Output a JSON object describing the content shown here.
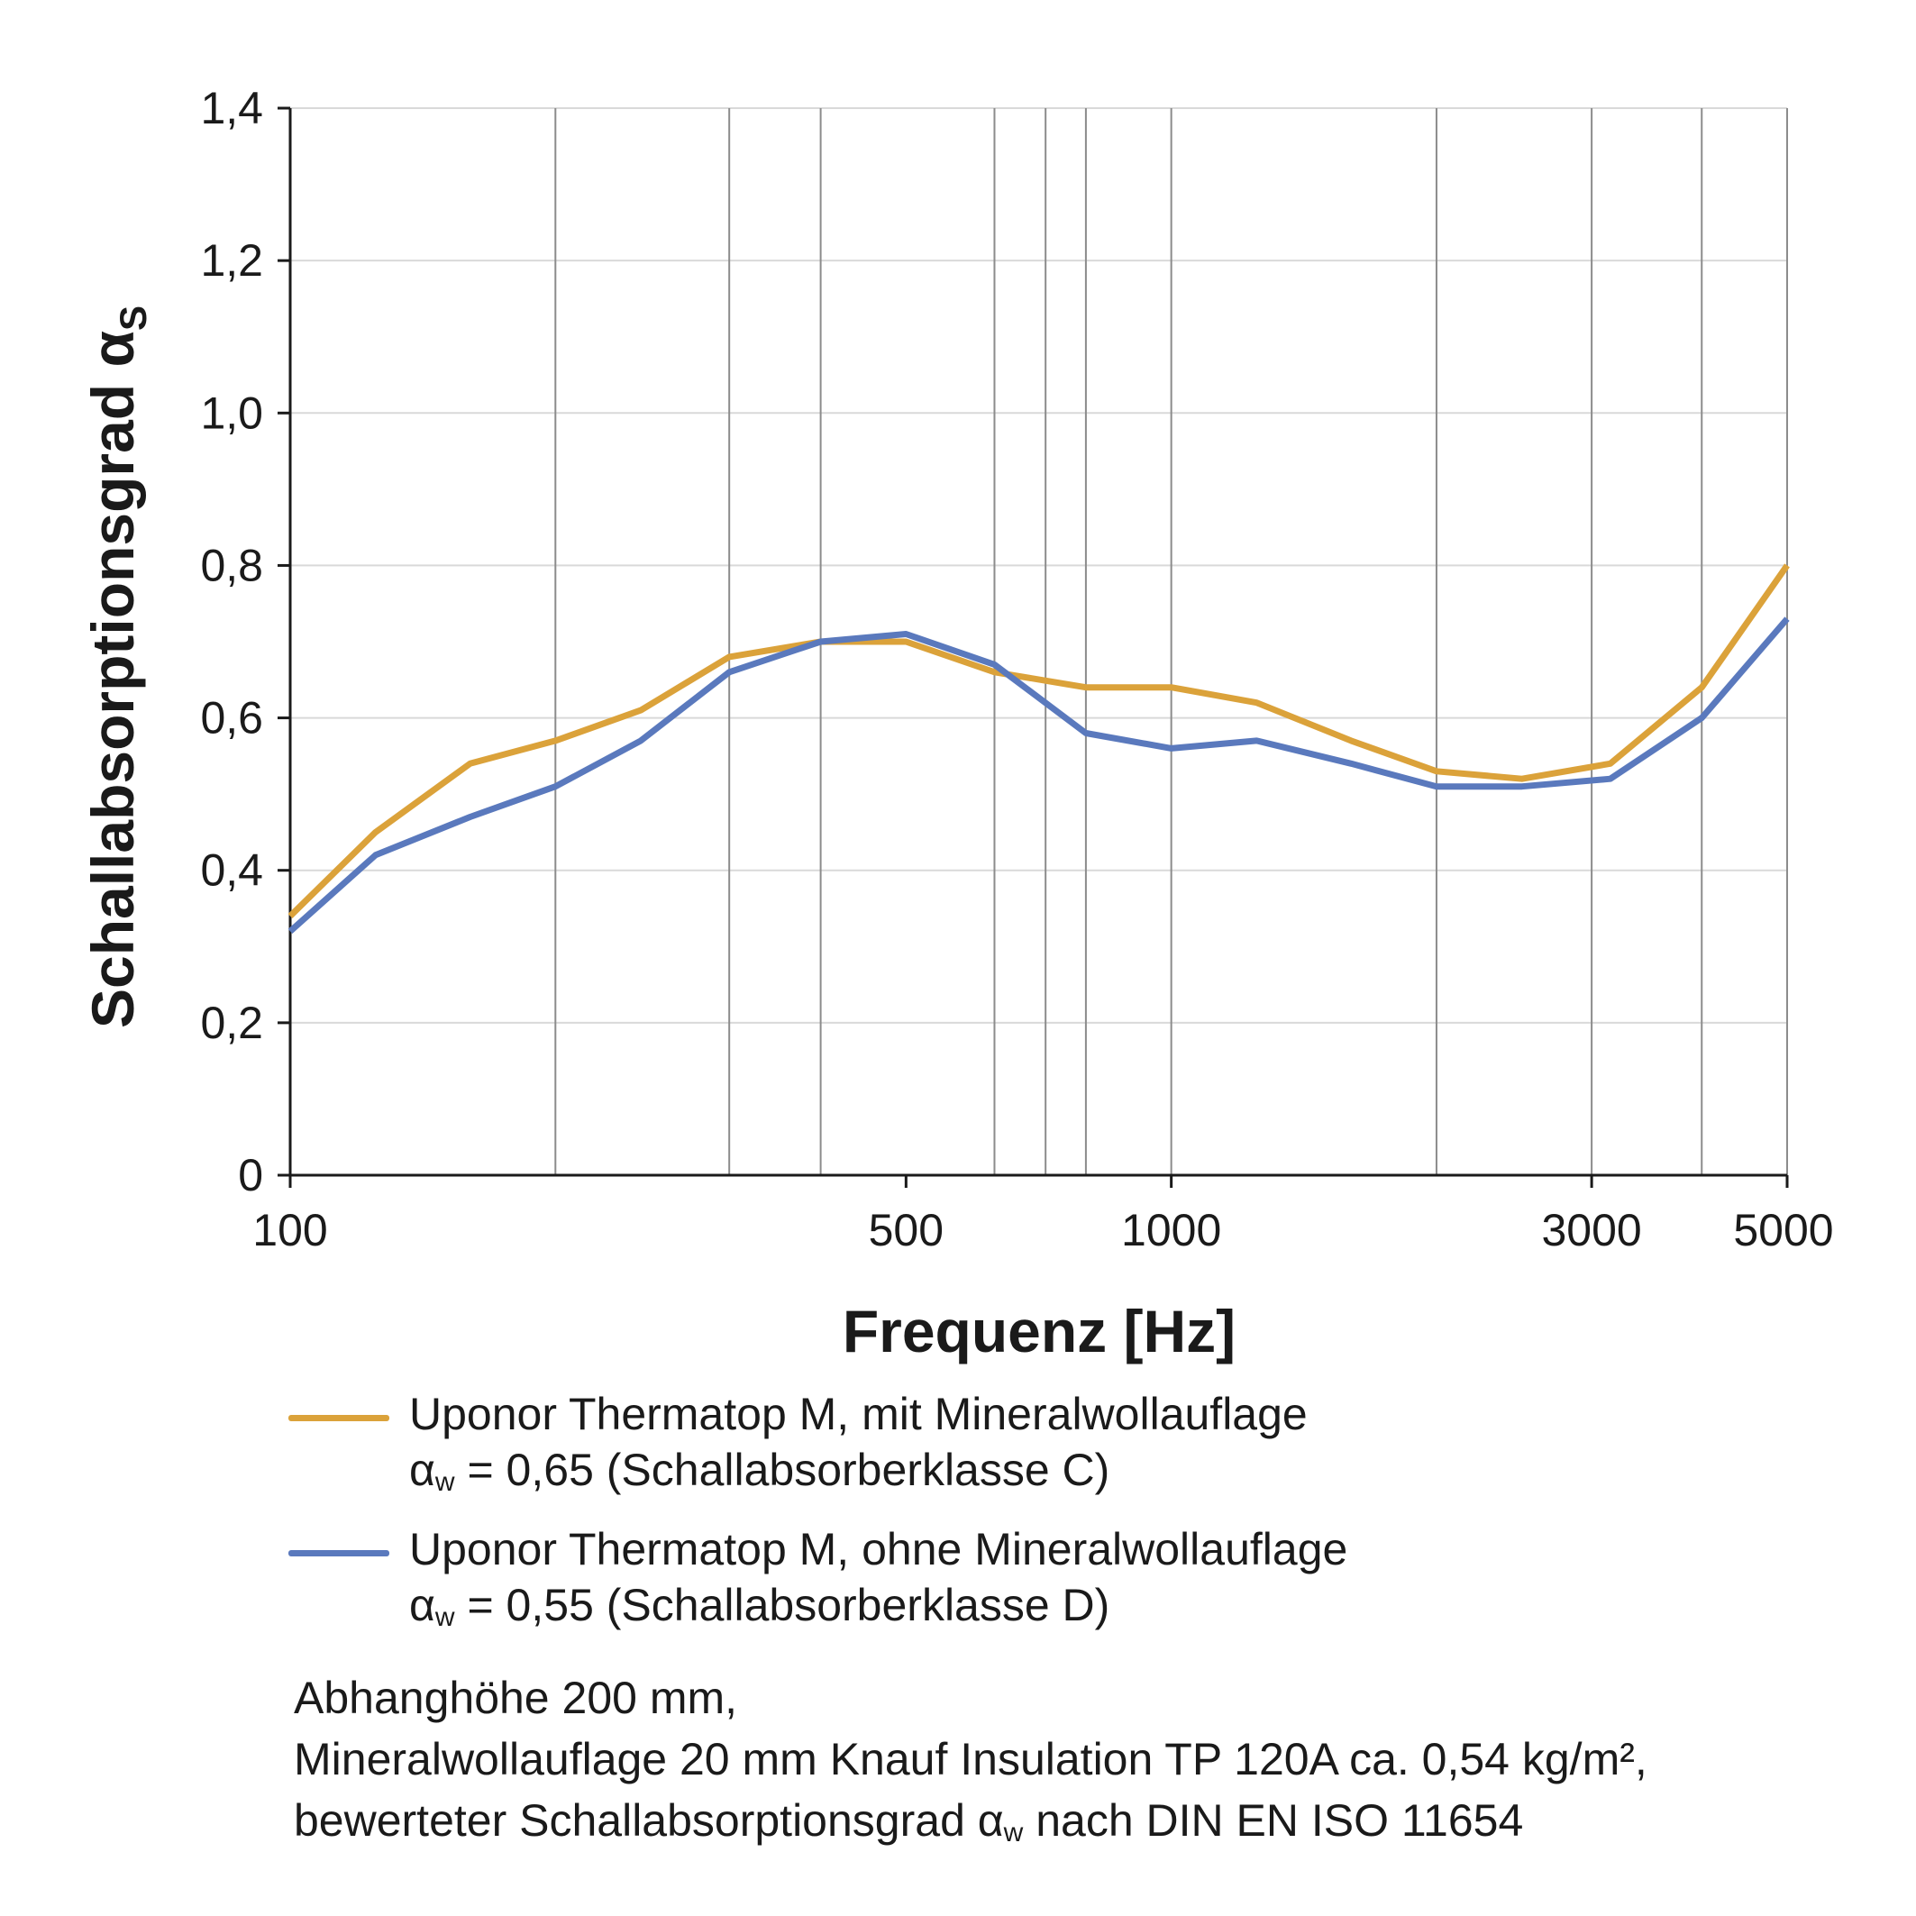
{
  "chart_data": {
    "type": "line",
    "xlabel": "Frequenz [Hz]",
    "ylabel_main": "Schallabsorptionsgrad α",
    "ylabel_sub": "S",
    "x_scale": "log",
    "xlim": [
      100,
      5000
    ],
    "ylim": [
      0,
      1.4
    ],
    "x_ticks": [
      {
        "value": 100,
        "label": "100"
      },
      {
        "value": 500,
        "label": "500"
      },
      {
        "value": 1000,
        "label": "1000"
      },
      {
        "value": 3000,
        "label": "3000"
      },
      {
        "value": 5000,
        "label": "5000"
      }
    ],
    "y_ticks": [
      {
        "value": 0,
        "label": "0"
      },
      {
        "value": 0.2,
        "label": "0,2"
      },
      {
        "value": 0.4,
        "label": "0,4"
      },
      {
        "value": 0.6,
        "label": "0,6"
      },
      {
        "value": 0.8,
        "label": "0,8"
      },
      {
        "value": 1.0,
        "label": "1,0"
      },
      {
        "value": 1.2,
        "label": "1,2"
      },
      {
        "value": 1.4,
        "label": "1,4"
      }
    ],
    "x_gridlines": [
      200,
      315,
      400,
      630,
      720,
      800,
      1000,
      2000,
      3000,
      4000
    ],
    "y_gridlines": [
      0.2,
      0.4,
      0.6,
      0.8,
      1.0,
      1.2,
      1.4
    ],
    "x": [
      100,
      125,
      160,
      200,
      250,
      315,
      400,
      500,
      630,
      800,
      1000,
      1250,
      1600,
      2000,
      2500,
      3150,
      4000,
      5000
    ],
    "series": [
      {
        "name": "Uponor Thermatop M, mit Mineralwollauflage",
        "color": "#dba23a",
        "values": [
          0.34,
          0.45,
          0.54,
          0.57,
          0.61,
          0.68,
          0.7,
          0.7,
          0.66,
          0.64,
          0.64,
          0.62,
          0.57,
          0.53,
          0.52,
          0.54,
          0.64,
          0.8
        ]
      },
      {
        "name": "Uponor Thermatop M, ohne Mineralwollauflage",
        "color": "#5a79bd",
        "values": [
          0.32,
          0.42,
          0.47,
          0.51,
          0.57,
          0.66,
          0.7,
          0.71,
          0.67,
          0.58,
          0.56,
          0.57,
          0.54,
          0.51,
          0.51,
          0.52,
          0.6,
          0.73
        ]
      }
    ],
    "legend": [
      {
        "line1": "Uponor Thermatop M, mit Mineralwollauflage",
        "alpha": "α",
        "sub": "w",
        "line2": " = 0,65 (Schallabsorberklasse C)"
      },
      {
        "line1": "Uponor Thermatop M, ohne Mineralwollauflage",
        "alpha": "α",
        "sub": "w",
        "line2": " = 0,55 (Schallabsorberklasse D)"
      }
    ],
    "legend_placement": "below",
    "grid": true
  },
  "notes": {
    "line1": "Abhanghöhe 200 mm,",
    "line2": "Mineralwollauflage 20 mm Knauf Insulation TP 120A ca. 0,54 kg/m²,",
    "line3_pre": "bewerteter Schallabsorptionsgrad α",
    "line3_sub": "w",
    "line3_post": " nach DIN EN ISO 11654"
  }
}
